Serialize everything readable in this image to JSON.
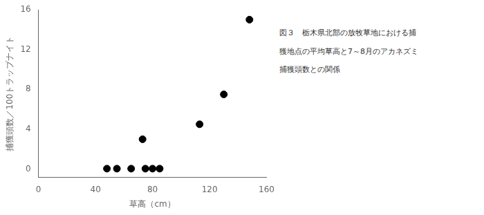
{
  "chart_data": {
    "type": "scatter",
    "x": [
      48,
      55,
      65,
      73,
      75,
      80,
      85,
      113,
      130,
      148
    ],
    "values": [
      0.05,
      0.05,
      0.05,
      3.0,
      0.05,
      0.05,
      0.05,
      4.5,
      7.5,
      15.0
    ],
    "color": "black",
    "xlabel": "草高（cm）",
    "ylabel": "捕獲頭数／100トラップナイト",
    "xlim": [
      0,
      160
    ],
    "xticks": [
      0,
      40,
      80,
      120,
      160
    ],
    "ylim": [
      -0.8,
      16
    ],
    "yticks": [
      0,
      4,
      8,
      12,
      16
    ],
    "grid": false,
    "annotations": [
      "図３　栃木県北部の放牧草地における捕",
      "獲地点の平均草高と7～8月のアカネズミ",
      "捕獲頭数との関係"
    ]
  }
}
